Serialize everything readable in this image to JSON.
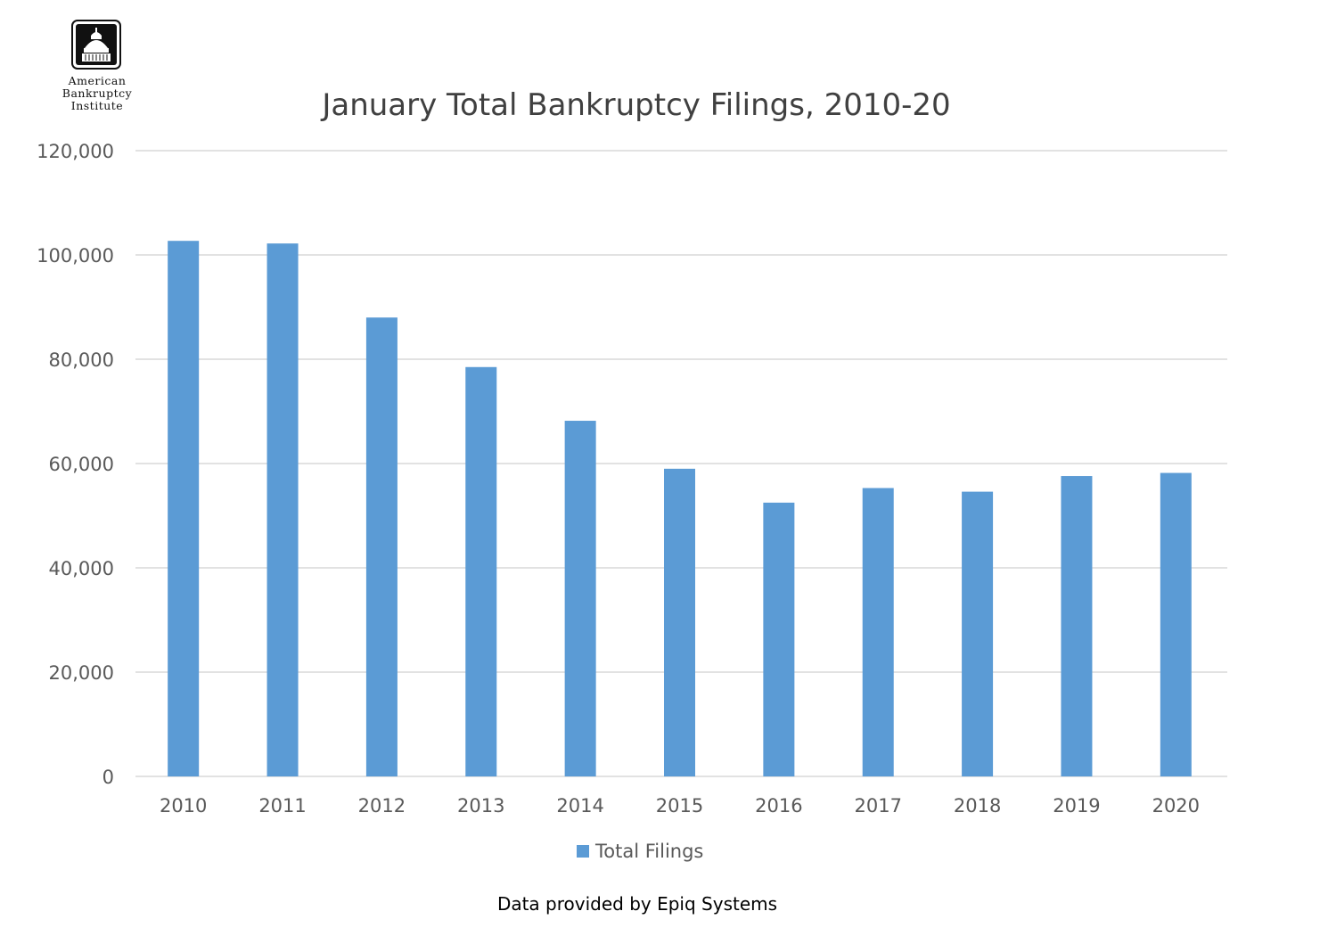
{
  "logo": {
    "lines": [
      "American",
      "Bankruptcy",
      "Institute"
    ]
  },
  "source_note": "Data provided by Epiq Systems",
  "colors": {
    "bar": "#5b9bd5",
    "grid": "#d9d9d9",
    "text": "#595959",
    "title": "#404040"
  },
  "chart_data": {
    "type": "bar",
    "title": "January Total Bankruptcy Filings, 2010-20",
    "categories": [
      "2010",
      "2011",
      "2012",
      "2013",
      "2014",
      "2015",
      "2016",
      "2017",
      "2018",
      "2019",
      "2020"
    ],
    "series": [
      {
        "name": "Total Filings",
        "values": [
          102700,
          102200,
          88000,
          78500,
          68200,
          59000,
          52500,
          55300,
          54600,
          57600,
          58200
        ]
      }
    ],
    "ylim": [
      0,
      120000
    ],
    "yticks": [
      0,
      20000,
      40000,
      60000,
      80000,
      100000,
      120000
    ],
    "ytick_labels": [
      "0",
      "20,000",
      "40,000",
      "60,000",
      "80,000",
      "100,000",
      "120,000"
    ],
    "grid": true,
    "legend": "bottom"
  }
}
